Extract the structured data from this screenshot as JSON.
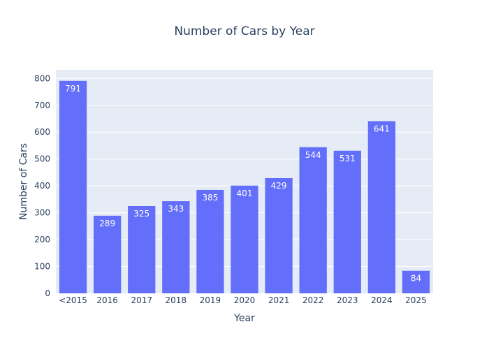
{
  "chart_data": {
    "type": "bar",
    "title": "Number of Cars by Year",
    "xlabel": "Year",
    "ylabel": "Number of Cars",
    "categories": [
      "<2015",
      "2016",
      "2017",
      "2018",
      "2019",
      "2020",
      "2021",
      "2022",
      "2023",
      "2024",
      "2025"
    ],
    "values": [
      791,
      289,
      325,
      343,
      385,
      401,
      429,
      544,
      531,
      641,
      84
    ],
    "data_labels": [
      "791",
      "289",
      "325",
      "343",
      "385",
      "401",
      "429",
      "544",
      "531",
      "641",
      "84"
    ],
    "ylim": [
      0,
      832
    ],
    "yticks": [
      0,
      100,
      200,
      300,
      400,
      500,
      600,
      700,
      800
    ],
    "ytick_labels": [
      "0",
      "100",
      "200",
      "300",
      "400",
      "500",
      "600",
      "700",
      "800"
    ],
    "grid": true,
    "legend": "none",
    "colors": {
      "bar": "#636efa",
      "plot_background": "#e5ecf6",
      "gridline": "#ffffff",
      "text": "#2a3f5f",
      "bar_label": "#ffffff"
    }
  }
}
